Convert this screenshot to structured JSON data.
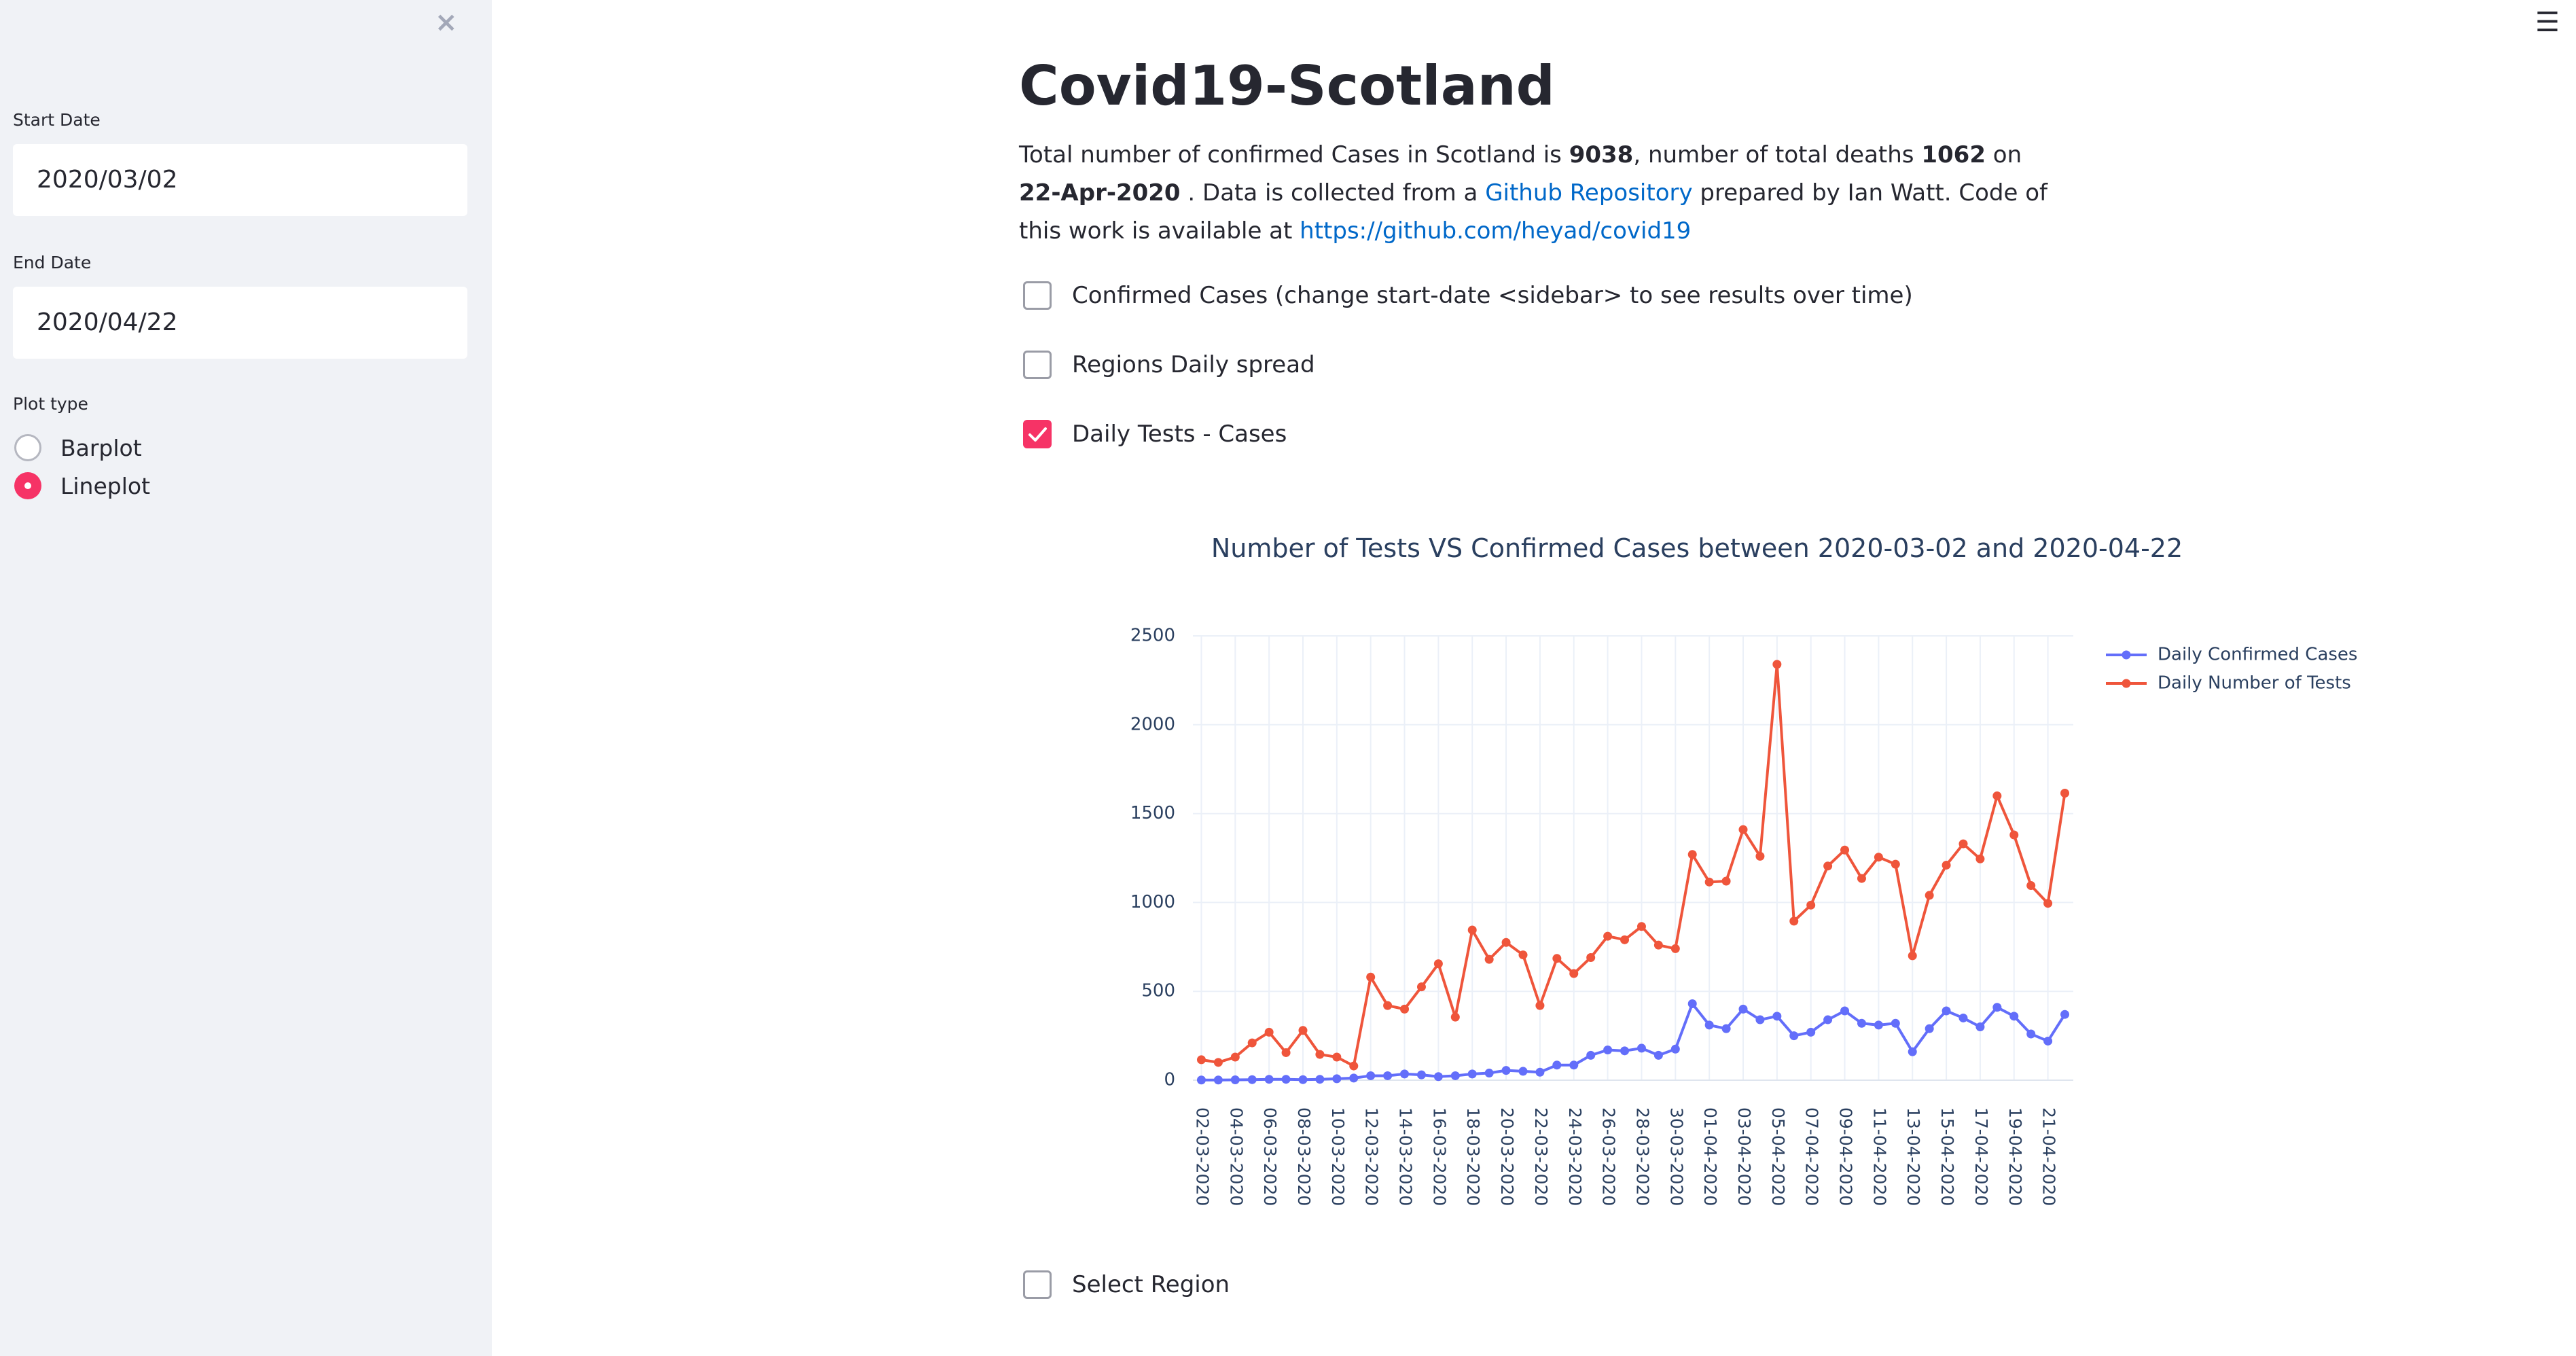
{
  "sidebar": {
    "close_icon": "×",
    "start_date": {
      "label": "Start Date",
      "value": "2020/03/02"
    },
    "end_date": {
      "label": "End Date",
      "value": "2020/04/22"
    },
    "plot_type": {
      "label": "Plot type",
      "options": [
        {
          "label": "Barplot",
          "selected": false
        },
        {
          "label": "Lineplot",
          "selected": true
        }
      ]
    }
  },
  "header": {
    "menu_icon": "☰"
  },
  "main": {
    "title": "Covid19-Scotland",
    "intro": {
      "t1": "Total number of confirmed Cases in Scotland is ",
      "cases": "9038",
      "t2": ", number of total deaths ",
      "deaths": "1062",
      "t3": " on ",
      "date": "22-Apr-2020",
      "t4": " . Data is collected from a ",
      "link_text": "Github Repository",
      "t5": " prepared by Ian Watt. Code of this work is available at ",
      "code_url": "https://github.com/heyad/covid19"
    },
    "checkboxes": {
      "confirmed": {
        "label": "Confirmed Cases (change start-date <sidebar> to see results over time)",
        "checked": false
      },
      "regions": {
        "label": "Regions Daily spread",
        "checked": false
      },
      "tests": {
        "label": "Daily Tests - Cases",
        "checked": true
      },
      "select_region": {
        "label": "Select Region",
        "checked": false
      }
    }
  },
  "chart_data": {
    "type": "line",
    "title": "Number of Tests VS Confirmed Cases between 2020-03-02 and 2020-04-22",
    "xlabel": "",
    "ylabel": "",
    "ylim": [
      0,
      2500
    ],
    "yticks": [
      0,
      500,
      1000,
      1500,
      2000,
      2500
    ],
    "grid": true,
    "legend_position": "top-right",
    "categories": [
      "02-03-2020",
      "03-03-2020",
      "04-03-2020",
      "05-03-2020",
      "06-03-2020",
      "07-03-2020",
      "08-03-2020",
      "09-03-2020",
      "10-03-2020",
      "11-03-2020",
      "12-03-2020",
      "13-03-2020",
      "14-03-2020",
      "15-03-2020",
      "16-03-2020",
      "17-03-2020",
      "18-03-2020",
      "19-03-2020",
      "20-03-2020",
      "21-03-2020",
      "22-03-2020",
      "23-03-2020",
      "24-03-2020",
      "25-03-2020",
      "26-03-2020",
      "27-03-2020",
      "28-03-2020",
      "29-03-2020",
      "30-03-2020",
      "31-03-2020",
      "01-04-2020",
      "02-04-2020",
      "03-04-2020",
      "04-04-2020",
      "05-04-2020",
      "06-04-2020",
      "07-04-2020",
      "08-04-2020",
      "09-04-2020",
      "10-04-2020",
      "11-04-2020",
      "12-04-2020",
      "13-04-2020",
      "14-04-2020",
      "15-04-2020",
      "16-04-2020",
      "17-04-2020",
      "18-04-2020",
      "19-04-2020",
      "20-04-2020",
      "21-04-2020",
      "22-04-2020"
    ],
    "tick_labels": [
      "02-03-2020",
      "04-03-2020",
      "06-03-2020",
      "08-03-2020",
      "10-03-2020",
      "12-03-2020",
      "14-03-2020",
      "16-03-2020",
      "18-03-2020",
      "20-03-2020",
      "22-03-2020",
      "24-03-2020",
      "26-03-2020",
      "28-03-2020",
      "30-03-2020",
      "01-04-2020",
      "03-04-2020",
      "05-04-2020",
      "07-04-2020",
      "09-04-2020",
      "11-04-2020",
      "13-04-2020",
      "15-04-2020",
      "17-04-2020",
      "19-04-2020",
      "21-04-2020"
    ],
    "series": [
      {
        "name": "Daily Confirmed Cases",
        "color": "#636efa",
        "values": [
          1,
          1,
          2,
          3,
          5,
          5,
          3,
          5,
          8,
          12,
          25,
          25,
          35,
          30,
          20,
          25,
          35,
          40,
          55,
          50,
          45,
          85,
          85,
          140,
          170,
          165,
          180,
          140,
          175,
          430,
          310,
          290,
          400,
          340,
          360,
          250,
          270,
          340,
          390,
          320,
          310,
          320,
          160,
          290,
          390,
          350,
          300,
          410,
          360,
          260,
          220,
          370
        ]
      },
      {
        "name": "Daily Number of Tests",
        "color": "#ef553b",
        "values": [
          115,
          100,
          130,
          210,
          270,
          155,
          280,
          145,
          130,
          80,
          580,
          420,
          400,
          525,
          655,
          355,
          845,
          680,
          775,
          705,
          420,
          685,
          600,
          690,
          810,
          790,
          865,
          760,
          740,
          1270,
          1115,
          1120,
          1410,
          1260,
          2340,
          895,
          985,
          1205,
          1295,
          1135,
          1255,
          1215,
          700,
          1040,
          1210,
          1330,
          1245,
          1600,
          1380,
          1095,
          995,
          1615
        ]
      }
    ]
  }
}
